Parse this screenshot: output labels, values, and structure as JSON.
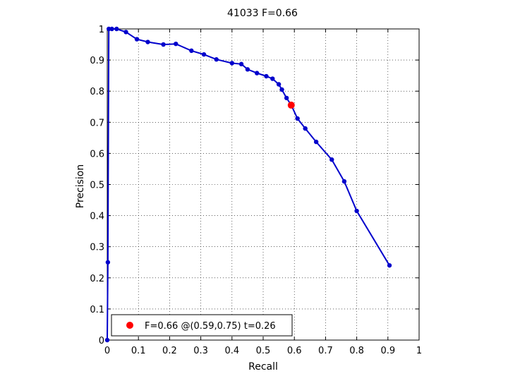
{
  "chart_data": {
    "type": "line",
    "title": "41033 F=0.66",
    "xlabel": "Recall",
    "ylabel": "Precision",
    "xlim": [
      0,
      1
    ],
    "ylim": [
      0,
      1
    ],
    "xticks": [
      "0",
      "0.1",
      "0.2",
      "0.3",
      "0.4",
      "0.5",
      "0.6",
      "0.7",
      "0.8",
      "0.9",
      "1"
    ],
    "yticks": [
      "0",
      "0.1",
      "0.2",
      "0.3",
      "0.4",
      "0.5",
      "0.6",
      "0.7",
      "0.8",
      "0.9",
      "1"
    ],
    "grid": true,
    "legend_position": "bottom-left",
    "series": [
      {
        "name": "",
        "color": "#0000cc",
        "x": [
          0,
          0.002,
          0.005,
          0.015,
          0.03,
          0.06,
          0.095,
          0.13,
          0.18,
          0.22,
          0.27,
          0.31,
          0.35,
          0.4,
          0.43,
          0.45,
          0.48,
          0.51,
          0.53,
          0.55,
          0.56,
          0.575,
          0.59,
          0.61,
          0.635,
          0.67,
          0.72,
          0.76,
          0.8,
          0.905
        ],
        "y": [
          0,
          0.25,
          1.0,
          1.0,
          1.0,
          0.99,
          0.967,
          0.958,
          0.95,
          0.952,
          0.93,
          0.918,
          0.902,
          0.89,
          0.887,
          0.87,
          0.858,
          0.848,
          0.84,
          0.822,
          0.805,
          0.778,
          0.755,
          0.712,
          0.68,
          0.637,
          0.58,
          0.51,
          0.415,
          0.24
        ]
      }
    ],
    "highlight": {
      "color": "#ff0000",
      "x": 0.59,
      "y": 0.755,
      "label": "F=0.66 @(0.59,0.75) t=0.26"
    }
  }
}
